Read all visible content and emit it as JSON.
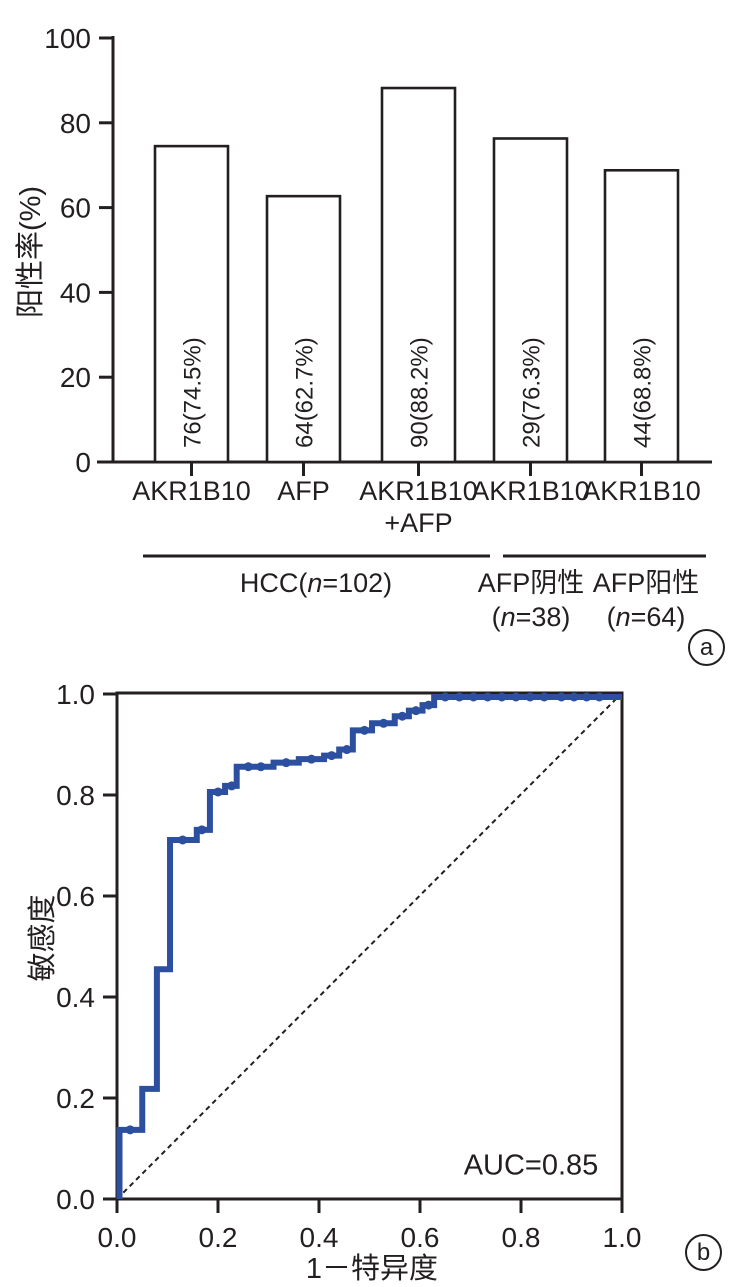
{
  "colors": {
    "ink": "#231f20",
    "curve_blue": "#2d4f9f",
    "background": "#ffffff"
  },
  "chart_data": [
    {
      "type": "bar",
      "panel_tag": "a",
      "title": "",
      "xlabel": "",
      "ylabel": "阳性率(%)",
      "ylim": [
        0,
        100
      ],
      "yticks": [
        0,
        20,
        40,
        60,
        80,
        100
      ],
      "grid": false,
      "bar_fill": "#ffffff",
      "categories": [
        "AKR1B10",
        "AFP",
        "AKR1B10\n+AFP",
        "AKR1B10",
        "AKR1B10"
      ],
      "values": [
        74.5,
        62.7,
        88.2,
        76.3,
        68.8
      ],
      "bar_labels": [
        "76(74.5%)",
        "64(62.7%)",
        "90(88.2%)",
        "29(76.3%)",
        "44(68.8%)"
      ],
      "groups": [
        {
          "text": "HCC(n=102)",
          "line1": null,
          "parts": {
            "pre": "HCC(",
            "italic": "n",
            "post": "=102)"
          }
        },
        {
          "text": "AFP阴性(n=38)",
          "line1": "AFP阴性",
          "parts": {
            "pre": "(",
            "italic": "n",
            "post": "=38)"
          }
        },
        {
          "text": "AFP阳性(n=64)",
          "line1": "AFP阳性",
          "parts": {
            "pre": "(",
            "italic": "n",
            "post": "=64)"
          }
        }
      ]
    },
    {
      "type": "line",
      "panel_tag": "b",
      "title": "",
      "xlabel": "1－特异度",
      "ylabel": "敏感度",
      "xlim": [
        0,
        1
      ],
      "ylim": [
        0,
        1
      ],
      "xticks": [
        0,
        0.2,
        0.4,
        0.6,
        0.8,
        1
      ],
      "yticks": [
        0,
        0.2,
        0.4,
        0.6,
        0.8,
        1
      ],
      "grid": false,
      "annotation": "AUC=0.85",
      "diagonal_reference": true,
      "series": [
        {
          "name": "ROC curve",
          "color": "#2d4f9f",
          "points": [
            [
              0,
              0
            ],
            [
              0,
              0.137
            ],
            [
              0.05,
              0.137
            ],
            [
              0.05,
              0.218
            ],
            [
              0.079,
              0.218
            ],
            [
              0.079,
              0.455
            ],
            [
              0.105,
              0.455
            ],
            [
              0.105,
              0.711
            ],
            [
              0.158,
              0.711
            ],
            [
              0.158,
              0.731
            ],
            [
              0.184,
              0.731
            ],
            [
              0.184,
              0.806
            ],
            [
              0.214,
              0.806
            ],
            [
              0.214,
              0.818
            ],
            [
              0.237,
              0.818
            ],
            [
              0.237,
              0.856
            ],
            [
              0.31,
              0.856
            ],
            [
              0.31,
              0.864
            ],
            [
              0.36,
              0.864
            ],
            [
              0.36,
              0.871
            ],
            [
              0.41,
              0.871
            ],
            [
              0.41,
              0.878
            ],
            [
              0.44,
              0.878
            ],
            [
              0.44,
              0.89
            ],
            [
              0.467,
              0.89
            ],
            [
              0.467,
              0.928
            ],
            [
              0.505,
              0.928
            ],
            [
              0.505,
              0.942
            ],
            [
              0.55,
              0.942
            ],
            [
              0.55,
              0.956
            ],
            [
              0.578,
              0.956
            ],
            [
              0.578,
              0.967
            ],
            [
              0.605,
              0.967
            ],
            [
              0.605,
              0.978
            ],
            [
              0.628,
              0.978
            ],
            [
              0.628,
              1
            ],
            [
              1,
              1
            ]
          ],
          "markers": [
            [
              0.026,
              0.137
            ],
            [
              0.13,
              0.711
            ],
            [
              0.168,
              0.731
            ],
            [
              0.2,
              0.806
            ],
            [
              0.227,
              0.818
            ],
            [
              0.26,
              0.856
            ],
            [
              0.285,
              0.856
            ],
            [
              0.335,
              0.864
            ],
            [
              0.385,
              0.871
            ],
            [
              0.425,
              0.878
            ],
            [
              0.455,
              0.89
            ],
            [
              0.49,
              0.928
            ],
            [
              0.528,
              0.942
            ],
            [
              0.565,
              0.956
            ],
            [
              0.592,
              0.967
            ],
            [
              0.617,
              0.978
            ],
            [
              0.65,
              1
            ],
            [
              0.678,
              1
            ],
            [
              0.706,
              1
            ],
            [
              0.734,
              1
            ],
            [
              0.762,
              1
            ],
            [
              0.79,
              1
            ],
            [
              0.818,
              1
            ],
            [
              0.846,
              1
            ],
            [
              0.88,
              1
            ],
            [
              0.905,
              1
            ],
            [
              0.93,
              1
            ],
            [
              0.955,
              1
            ]
          ]
        }
      ]
    }
  ]
}
